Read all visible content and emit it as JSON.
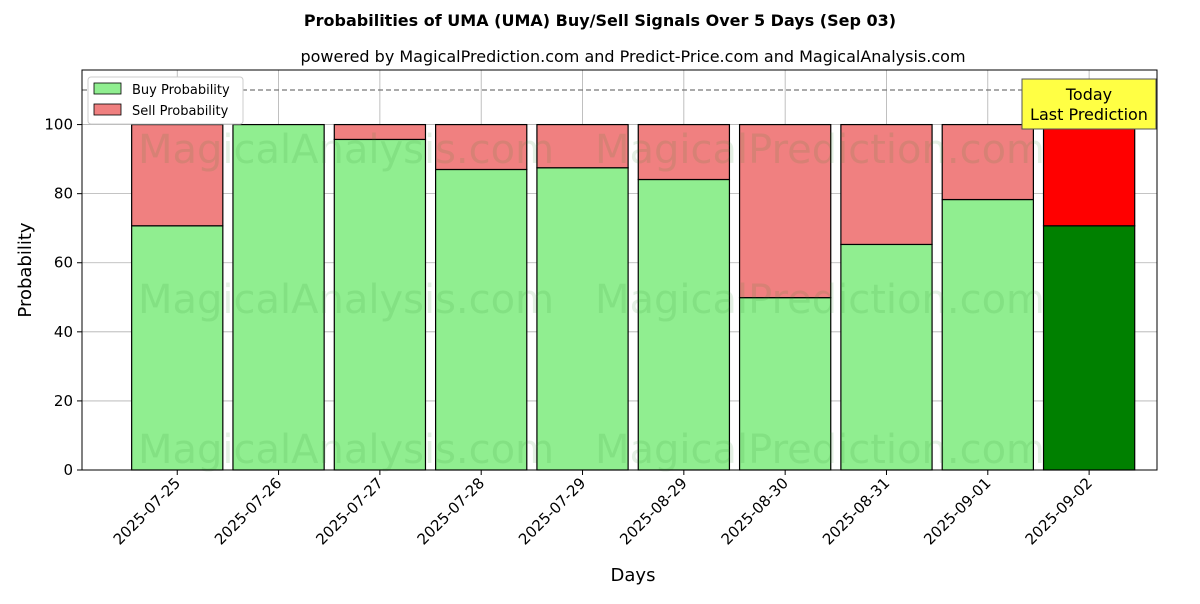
{
  "chart_data": {
    "type": "bar",
    "stacked": true,
    "title": "Probabilities of UMA (UMA) Buy/Sell Signals Over 5 Days (Sep 03)",
    "subtitle": "powered by MagicalPrediction.com and Predict-Price.com and MagicalAnalysis.com",
    "xlabel": "Days",
    "ylabel": "Probability",
    "ylim": [
      0,
      115.8
    ],
    "yticks": [
      0,
      20,
      40,
      60,
      80,
      100
    ],
    "reference_line": 110,
    "grid": true,
    "legend_placement": "top-left",
    "categories": [
      "2025-07-25",
      "2025-07-26",
      "2025-07-27",
      "2025-07-28",
      "2025-07-29",
      "2025-08-29",
      "2025-08-30",
      "2025-08-31",
      "2025-09-01",
      "2025-09-02"
    ],
    "series": [
      {
        "name": "Buy Probability",
        "values": [
          70.7,
          100,
          95.7,
          87.0,
          87.5,
          84.1,
          49.9,
          65.3,
          78.3,
          70.7
        ]
      },
      {
        "name": "Sell Probability",
        "values": [
          29.3,
          0,
          4.3,
          13.0,
          12.5,
          15.9,
          50.1,
          34.7,
          21.7,
          29.3
        ]
      }
    ],
    "colors": {
      "buy": "#90ee90",
      "sell": "#f08080",
      "buy_today": "#008000",
      "sell_today": "#ff0000",
      "annotation_bg": "#ffff44"
    },
    "annotation": {
      "line1": "Today",
      "line2": "Last Prediction"
    },
    "watermarks": [
      "MagicalAnalysis.com",
      "MagicalPrediction.com"
    ]
  }
}
